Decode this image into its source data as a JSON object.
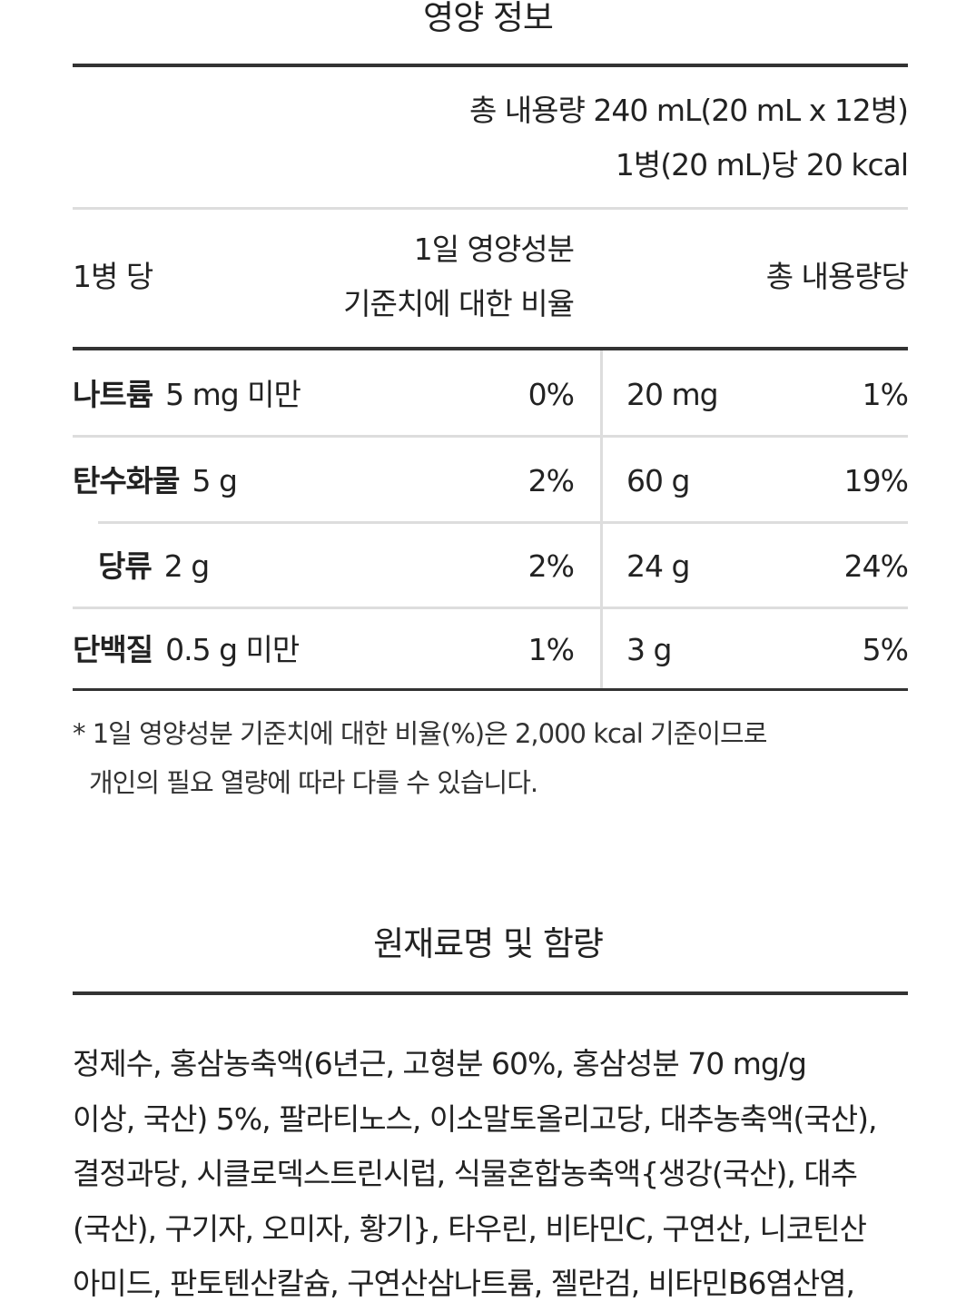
{
  "nutrition": {
    "title": "영양 정보",
    "total_content": "총 내용량 240 mL(20 mL x 12병)",
    "per_bottle_kcal": "1병(20 mL)당 20 kcal",
    "header": {
      "per_bottle": "1병 당",
      "daily_ratio_1": "1일 영양성분",
      "daily_ratio_2": "기준치에 대한 비율",
      "per_total": "총 내용량당"
    },
    "rows": [
      {
        "nutrient": "나트륨",
        "amount": "5 mg 미만",
        "daily": "0%",
        "total_amount": "20 mg",
        "total_daily": "1%"
      },
      {
        "nutrient": "탄수화물",
        "amount": "5 g",
        "daily": "2%",
        "total_amount": "60 g",
        "total_daily": "19%"
      },
      {
        "nutrient": "당류",
        "amount": "2 g",
        "daily": "2%",
        "total_amount": "24 g",
        "total_daily": "24%"
      },
      {
        "nutrient": "단백질",
        "amount": "0.5 g 미만",
        "daily": "1%",
        "total_amount": "3 g",
        "total_daily": "5%"
      }
    ],
    "footnote": [
      "* 1일 영양성분 기준치에 대한 비율(%)은 2,000 kcal 기준이므로",
      "개인의 필요 열량에 따라 다를 수 있습니다."
    ]
  },
  "ingredients": {
    "title": "원재료명 및 함량",
    "lines": [
      "정제수, 홍삼농축액(6년근, 고형분 60%, 홍삼성분 70 mg/g",
      "이상, 국산) 5%, 팔라티노스, 이소말토올리고당, 대추농축액(국산),",
      "결정과당, 시클로덱스트린시럽, 식물혼합농축액{생강(국산), 대추",
      "(국산), 구기자, 오미자, 황기}, 타우린, 비타민C, 구연산, 니코틴산",
      "아미드, 판토텐산칼슘, 구연산삼나트륨, 젤란검, 비타민B6염산염,"
    ]
  }
}
